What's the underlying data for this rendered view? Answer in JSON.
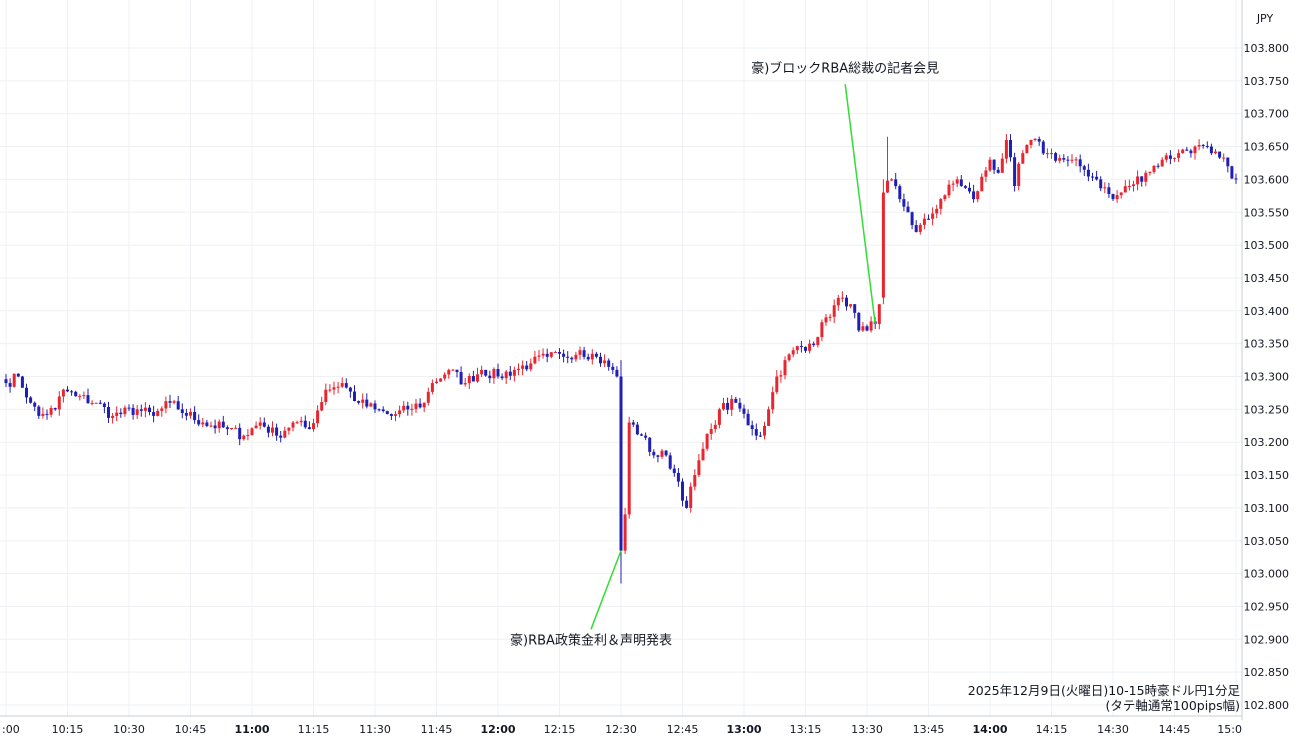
{
  "chart_data": {
    "type": "candlestick",
    "currency": "JPY",
    "caption_line1": "2025年12月9日(火曜日)10-15時豪ドル円1分足",
    "caption_line2": "(タテ軸通常100pips幅)",
    "ylim": [
      102.78,
      103.86
    ],
    "y_ticks": [
      "103.800",
      "103.750",
      "103.700",
      "103.650",
      "103.600",
      "103.550",
      "103.500",
      "103.450",
      "103.400",
      "103.350",
      "103.300",
      "103.250",
      "103.200",
      "103.150",
      "103.100",
      "103.050",
      "103.000",
      "102.950",
      "102.900",
      "102.850",
      "102.800"
    ],
    "x_ticks": [
      ":00",
      "10:15",
      "10:30",
      "10:45",
      "11:00",
      "11:15",
      "11:30",
      "11:45",
      "12:00",
      "12:15",
      "12:30",
      "12:45",
      "13:00",
      "13:15",
      "13:30",
      "13:45",
      "14:00",
      "14:15",
      "14:30",
      "14:45",
      "15:0"
    ],
    "bold_x_ticks": [
      "11:00",
      "12:00",
      "13:00",
      "14:00"
    ],
    "x_range_minutes": [
      -1,
      301
    ],
    "up_color": "#e8262f",
    "down_color": "#1f1fb4",
    "annotation_color": "#33dd33",
    "annotations": [
      {
        "text": "豪)RBA政策金利＆声明発表",
        "minute": 150,
        "price": 103.035,
        "label_price": 102.9
      },
      {
        "text": "豪)ブロックRBA総裁の記者会見",
        "minute": 212,
        "price": 103.38,
        "label_price": 103.76
      }
    ],
    "anchors": [
      [
        0,
        103.29
      ],
      [
        3,
        103.3
      ],
      [
        6,
        103.26
      ],
      [
        8,
        103.24
      ],
      [
        12,
        103.25
      ],
      [
        14,
        103.28
      ],
      [
        17,
        103.27
      ],
      [
        22,
        103.26
      ],
      [
        26,
        103.24
      ],
      [
        32,
        103.25
      ],
      [
        36,
        103.24
      ],
      [
        40,
        103.26
      ],
      [
        42,
        103.25
      ],
      [
        48,
        103.23
      ],
      [
        54,
        103.22
      ],
      [
        58,
        103.21
      ],
      [
        62,
        103.23
      ],
      [
        66,
        103.21
      ],
      [
        70,
        103.23
      ],
      [
        74,
        103.22
      ],
      [
        78,
        103.28
      ],
      [
        82,
        103.29
      ],
      [
        86,
        103.26
      ],
      [
        90,
        103.25
      ],
      [
        94,
        103.24
      ],
      [
        98,
        103.25
      ],
      [
        102,
        103.26
      ],
      [
        104,
        103.29
      ],
      [
        108,
        103.31
      ],
      [
        112,
        103.29
      ],
      [
        116,
        103.31
      ],
      [
        120,
        103.3
      ],
      [
        124,
        103.31
      ],
      [
        128,
        103.32
      ],
      [
        132,
        103.33
      ],
      [
        136,
        103.33
      ],
      [
        140,
        103.34
      ],
      [
        144,
        103.33
      ],
      [
        148,
        103.31
      ],
      [
        149,
        103.3
      ],
      [
        150,
        103.035
      ],
      [
        151,
        103.1
      ],
      [
        152,
        103.23
      ],
      [
        155,
        103.21
      ],
      [
        158,
        103.18
      ],
      [
        161,
        103.18
      ],
      [
        164,
        103.14
      ],
      [
        166,
        103.1
      ],
      [
        168,
        103.15
      ],
      [
        170,
        103.19
      ],
      [
        172,
        103.22
      ],
      [
        174,
        103.25
      ],
      [
        178,
        103.26
      ],
      [
        182,
        103.22
      ],
      [
        184,
        103.21
      ],
      [
        186,
        103.25
      ],
      [
        188,
        103.3
      ],
      [
        192,
        103.34
      ],
      [
        196,
        103.35
      ],
      [
        198,
        103.36
      ],
      [
        200,
        103.39
      ],
      [
        204,
        103.42
      ],
      [
        206,
        103.41
      ],
      [
        208,
        103.37
      ],
      [
        210,
        103.37
      ],
      [
        212,
        103.38
      ],
      [
        213,
        103.41
      ],
      [
        214,
        103.58
      ],
      [
        216,
        103.6
      ],
      [
        218,
        103.57
      ],
      [
        220,
        103.55
      ],
      [
        222,
        103.52
      ],
      [
        225,
        103.54
      ],
      [
        228,
        103.57
      ],
      [
        232,
        103.6
      ],
      [
        236,
        103.57
      ],
      [
        240,
        103.63
      ],
      [
        242,
        103.61
      ],
      [
        244,
        103.66
      ],
      [
        246,
        103.59
      ],
      [
        248,
        103.64
      ],
      [
        250,
        103.66
      ],
      [
        254,
        103.64
      ],
      [
        258,
        103.63
      ],
      [
        262,
        103.62
      ],
      [
        266,
        103.6
      ],
      [
        270,
        103.57
      ],
      [
        274,
        103.59
      ],
      [
        278,
        103.61
      ],
      [
        282,
        103.63
      ],
      [
        286,
        103.64
      ],
      [
        290,
        103.65
      ],
      [
        294,
        103.64
      ],
      [
        298,
        103.62
      ],
      [
        300,
        103.6
      ]
    ]
  }
}
